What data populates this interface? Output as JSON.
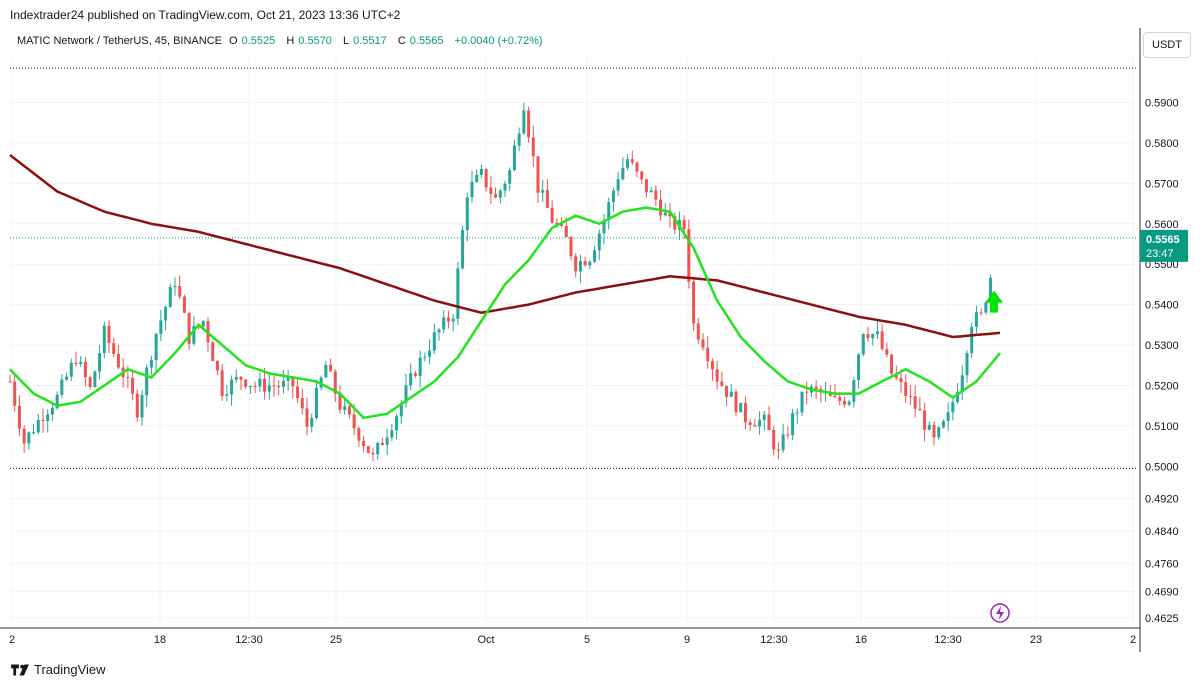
{
  "header": {
    "publisher_line": "Indextrader24 published on TradingView.com, Oct 21, 2023 13:36 UTC+2"
  },
  "legend": {
    "symbol": "MATIC Network / TetherUS, 45, BINANCE",
    "o_label": "O",
    "o_value": "0.5525",
    "h_label": "H",
    "h_value": "0.5570",
    "l_label": "L",
    "l_value": "0.5517",
    "c_label": "C",
    "c_value": "0.5565",
    "change": "+0.0040 (+0.72%)"
  },
  "currency_button": "USDT",
  "footer": {
    "brand": "TradingView"
  },
  "colors": {
    "up": "#26a69a",
    "down": "#ef5350",
    "ema_fast": "#22e41c",
    "ema_slow": "#8b0f0f",
    "price_label_bg": "#089981",
    "arrow": "#00e600",
    "flash_icon": "#9c27b0"
  },
  "chart_data": {
    "type": "candlestick",
    "symbol": "MATIC Network / TetherUS",
    "interval": "45",
    "exchange": "BINANCE",
    "ylim": [
      0.461,
      0.6015
    ],
    "y_ticks": [
      "0.5900",
      "0.5800",
      "0.5700",
      "0.5600",
      "0.5500",
      "0.5400",
      "0.5300",
      "0.5200",
      "0.5100",
      "0.5000",
      "0.4920",
      "0.4840",
      "0.4760",
      "0.4690",
      "0.4625"
    ],
    "x_ticks": [
      "2",
      "18",
      "12:30",
      "25",
      "Oct",
      "5",
      "9",
      "12:30",
      "16",
      "12:30",
      "23",
      "2"
    ],
    "horizontal_levels": [
      0.5985,
      0.4995
    ],
    "last_price": "0.5565",
    "countdown": "23:47",
    "current_price_level": 0.5565,
    "price_path": [
      [
        0,
        0.521
      ],
      [
        3,
        0.506
      ],
      [
        7,
        0.513
      ],
      [
        10,
        0.517
      ],
      [
        14,
        0.527
      ],
      [
        17,
        0.519
      ],
      [
        20,
        0.533
      ],
      [
        24,
        0.523
      ],
      [
        27,
        0.514
      ],
      [
        31,
        0.533
      ],
      [
        35,
        0.546
      ],
      [
        38,
        0.532
      ],
      [
        41,
        0.536
      ],
      [
        45,
        0.519
      ],
      [
        49,
        0.522
      ],
      [
        52,
        0.52
      ],
      [
        56,
        0.52
      ],
      [
        60,
        0.52
      ],
      [
        63,
        0.51
      ],
      [
        67,
        0.525
      ],
      [
        70,
        0.515
      ],
      [
        74,
        0.508
      ],
      [
        77,
        0.502
      ],
      [
        82,
        0.513
      ],
      [
        86,
        0.524
      ],
      [
        90,
        0.532
      ],
      [
        94,
        0.538
      ],
      [
        97,
        0.568
      ],
      [
        100,
        0.572
      ],
      [
        103,
        0.566
      ],
      [
        106,
        0.573
      ],
      [
        109,
        0.59
      ],
      [
        112,
        0.569
      ],
      [
        115,
        0.561
      ],
      [
        118,
        0.556
      ],
      [
        120,
        0.55
      ],
      [
        123,
        0.552
      ],
      [
        126,
        0.561
      ],
      [
        129,
        0.572
      ],
      [
        131,
        0.576
      ],
      [
        134,
        0.57
      ],
      [
        137,
        0.566
      ],
      [
        140,
        0.56
      ],
      [
        143,
        0.559
      ],
      [
        145,
        0.535
      ],
      [
        147,
        0.531
      ],
      [
        150,
        0.522
      ],
      [
        153,
        0.517
      ],
      [
        156,
        0.512
      ],
      [
        160,
        0.511
      ],
      [
        163,
        0.503
      ],
      [
        166,
        0.512
      ],
      [
        169,
        0.519
      ],
      [
        172,
        0.518
      ],
      [
        175,
        0.516
      ],
      [
        178,
        0.517
      ],
      [
        181,
        0.534
      ],
      [
        184,
        0.532
      ],
      [
        187,
        0.523
      ],
      [
        190,
        0.518
      ],
      [
        193,
        0.513
      ],
      [
        196,
        0.506
      ],
      [
        199,
        0.512
      ],
      [
        202,
        0.524
      ],
      [
        204,
        0.536
      ],
      [
        206,
        0.537
      ],
      [
        208,
        0.547
      ]
    ],
    "ema_fast_path": [
      [
        0,
        0.524
      ],
      [
        5,
        0.518
      ],
      [
        10,
        0.515
      ],
      [
        15,
        0.516
      ],
      [
        20,
        0.52
      ],
      [
        25,
        0.524
      ],
      [
        30,
        0.522
      ],
      [
        35,
        0.528
      ],
      [
        40,
        0.535
      ],
      [
        45,
        0.53
      ],
      [
        50,
        0.525
      ],
      [
        55,
        0.523
      ],
      [
        60,
        0.522
      ],
      [
        65,
        0.521
      ],
      [
        70,
        0.518
      ],
      [
        75,
        0.512
      ],
      [
        80,
        0.513
      ],
      [
        85,
        0.517
      ],
      [
        90,
        0.521
      ],
      [
        95,
        0.527
      ],
      [
        100,
        0.536
      ],
      [
        105,
        0.545
      ],
      [
        110,
        0.551
      ],
      [
        115,
        0.559
      ],
      [
        120,
        0.562
      ],
      [
        125,
        0.56
      ],
      [
        130,
        0.563
      ],
      [
        135,
        0.564
      ],
      [
        140,
        0.563
      ],
      [
        145,
        0.554
      ],
      [
        150,
        0.541
      ],
      [
        155,
        0.532
      ],
      [
        160,
        0.526
      ],
      [
        165,
        0.521
      ],
      [
        170,
        0.519
      ],
      [
        175,
        0.518
      ],
      [
        180,
        0.518
      ],
      [
        185,
        0.521
      ],
      [
        190,
        0.524
      ],
      [
        195,
        0.521
      ],
      [
        200,
        0.517
      ],
      [
        205,
        0.521
      ],
      [
        210,
        0.528
      ]
    ],
    "ema_slow_path": [
      [
        0,
        0.577
      ],
      [
        10,
        0.568
      ],
      [
        20,
        0.563
      ],
      [
        30,
        0.56
      ],
      [
        40,
        0.558
      ],
      [
        50,
        0.555
      ],
      [
        60,
        0.552
      ],
      [
        70,
        0.549
      ],
      [
        80,
        0.545
      ],
      [
        90,
        0.541
      ],
      [
        100,
        0.538
      ],
      [
        110,
        0.54
      ],
      [
        120,
        0.543
      ],
      [
        130,
        0.545
      ],
      [
        140,
        0.547
      ],
      [
        150,
        0.546
      ],
      [
        160,
        0.543
      ],
      [
        170,
        0.54
      ],
      [
        180,
        0.537
      ],
      [
        190,
        0.535
      ],
      [
        200,
        0.532
      ],
      [
        210,
        0.533
      ]
    ]
  }
}
